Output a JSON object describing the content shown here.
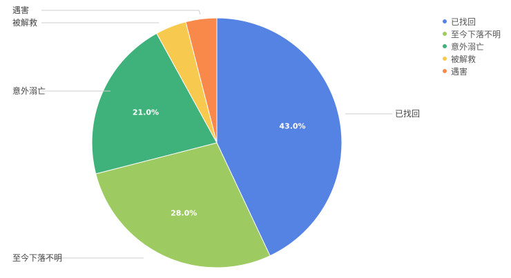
{
  "chart_data": {
    "type": "pie",
    "title": "",
    "legend_position": "top-right",
    "slices": [
      {
        "label": "已找回",
        "value": 43.0,
        "display": "43.0%",
        "color": "#5583e4"
      },
      {
        "label": "至今下落不明",
        "value": 28.0,
        "display": "28.0%",
        "color": "#9dcb62"
      },
      {
        "label": "意外溺亡",
        "value": 21.0,
        "display": "21.0%",
        "color": "#3fb27c"
      },
      {
        "label": "被解救",
        "value": 4.0,
        "display": "",
        "color": "#f7c94e"
      },
      {
        "label": "遇害",
        "value": 4.0,
        "display": "",
        "color": "#f8894a"
      }
    ]
  }
}
